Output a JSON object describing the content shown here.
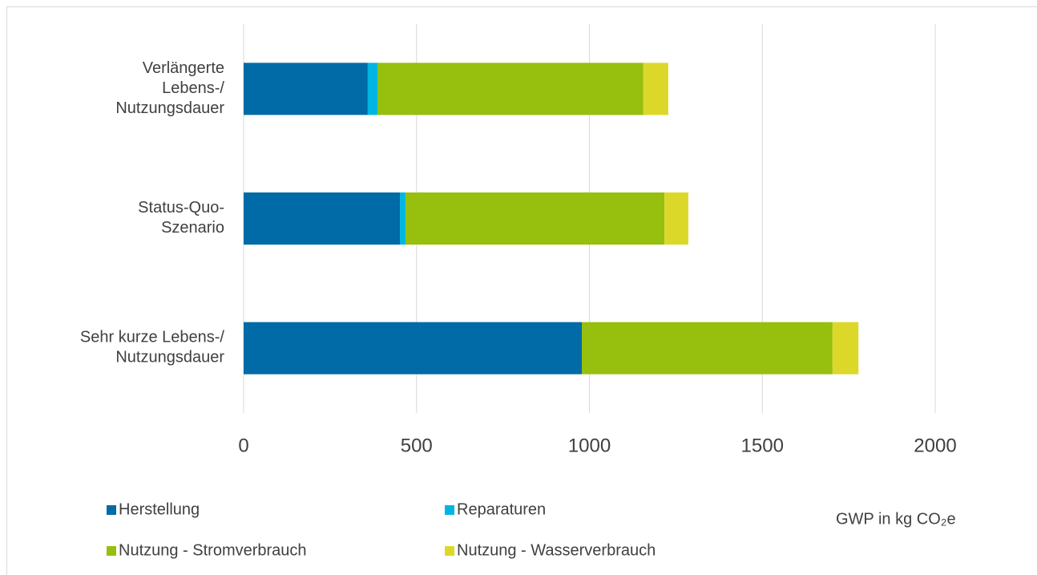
{
  "chart_data": {
    "type": "stacked_barh",
    "categories": [
      [
        "Verlängerte",
        "Lebens-/",
        "Nutzungsdauer"
      ],
      [
        "Status-Quo-",
        "Szenario"
      ],
      [
        "Sehr kurze Lebens-/",
        "Nutzungsdauer"
      ]
    ],
    "series": [
      {
        "name": "Herstellung",
        "color": "#006ba6",
        "values": [
          359,
          452,
          978
        ]
      },
      {
        "name": "Reparaturen",
        "color": "#00b5e2",
        "values": [
          28,
          16,
          0
        ]
      },
      {
        "name": "Nutzung - Stromverbrauch",
        "color": "#97bf0d",
        "values": [
          769,
          749,
          725
        ]
      },
      {
        "name": "Nutzung - Wasserverbrauch",
        "color": "#dcd829",
        "values": [
          72,
          69,
          75
        ]
      }
    ],
    "xlabel": "GWP in kg CO₂e",
    "xlim": [
      0,
      2250
    ],
    "xticks": [
      0,
      500,
      1000,
      1500,
      2000
    ],
    "grid": true
  }
}
